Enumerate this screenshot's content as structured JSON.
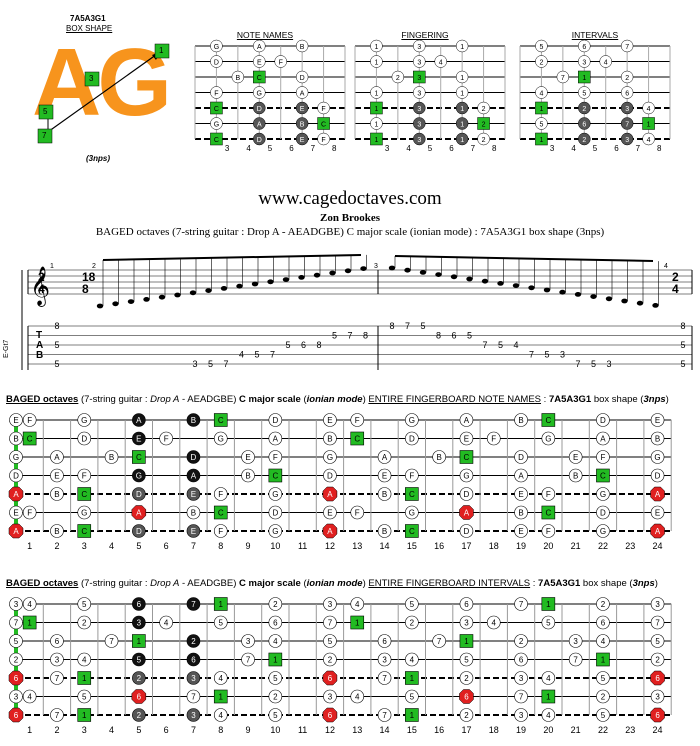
{
  "shape": {
    "name": "7A5A3G1",
    "subname": "BOX SHAPE",
    "big_letters": "AG",
    "nps": "(3nps)",
    "badges": [
      "1",
      "3",
      "5",
      "7"
    ]
  },
  "mini_titles": [
    "NOTE NAMES",
    "FINGERING",
    "INTERVALS"
  ],
  "mini_fret_numbers": [
    "3",
    "4",
    "5",
    "6",
    "7",
    "8"
  ],
  "site": "www.cagedoctaves.com",
  "author": "Zon Brookes",
  "subtitle": "BAGED octaves (7-string guitar : Drop A - AEADGBE) C major scale (ionian mode) : 7A5A3G1 box shape (3nps)",
  "staff": {
    "clef_label": "E-Gt7",
    "time1": [
      "2",
      "4"
    ],
    "time2": [
      "18",
      "8"
    ],
    "time3": [
      "2",
      "4"
    ],
    "measure_numbers": [
      "1",
      "2",
      "3",
      "4"
    ],
    "tab_letters": [
      "T",
      "A",
      "B"
    ],
    "tab_chord_start": [
      "8",
      "5",
      "5",
      "3",
      "3"
    ],
    "tab_chord_end": [
      "8",
      "5",
      "5",
      "3",
      "3"
    ],
    "tab_run1": [
      [
        "3",
        "5",
        "7"
      ],
      [
        "3",
        "5",
        "7"
      ],
      [
        "3",
        "5",
        "7"
      ],
      [
        "4",
        "5",
        "7"
      ],
      [
        "5",
        "6",
        "8"
      ],
      [
        "5",
        "7",
        "8"
      ]
    ],
    "tab_run2": [
      [
        "8",
        "7",
        "5"
      ],
      [
        "8",
        "6",
        "5"
      ],
      [
        "7",
        "5",
        "4"
      ],
      [
        "7",
        "5",
        "3"
      ],
      [
        "7",
        "5",
        "3"
      ],
      [
        "7",
        "5",
        "3"
      ]
    ]
  },
  "fb1": {
    "title_bold": "BAGED octaves",
    "title_rest": " (7-string guitar : ",
    "title_italic": "Drop A",
    "title_rest2": " - AEADGBE) ",
    "title_b2": "C major scale",
    "title_p": " (",
    "title_i2": "ionian mode",
    "title_p2": ") ",
    "title_u": "ENTIRE FINGERBOARD NOTE NAMES",
    "title_p3": " : ",
    "title_b3": "7A5A3G1",
    "title_p4": " box shape (",
    "title_b4": "3nps",
    "title_p5": ")"
  },
  "fb2": {
    "title_bold": "BAGED octaves",
    "title_rest": " (7-string guitar : ",
    "title_italic": "Drop A",
    "title_rest2": " - AEADGBE) ",
    "title_b2": "C major scale",
    "title_p": " (",
    "title_i2": "ionian mode",
    "title_p2": ") ",
    "title_u": "ENTIRE FINGERBOARD INTERVALS",
    "title_p3": " : ",
    "title_b3": "7A5A3G1",
    "title_p4": " box shape (",
    "title_b4": "3nps",
    "title_p5": ")"
  },
  "fret_numbers": [
    "1",
    "2",
    "3",
    "4",
    "5",
    "6",
    "7",
    "8",
    "9",
    "10",
    "11",
    "12",
    "13",
    "14",
    "15",
    "16",
    "17",
    "18",
    "19",
    "20",
    "21",
    "22",
    "23",
    "24"
  ],
  "open_notes": [
    "E",
    "B",
    "G",
    "D",
    "A",
    "E",
    "A"
  ],
  "open_intervals": [
    "3",
    "7",
    "5",
    "2",
    "6",
    "3",
    "6"
  ],
  "colors": {
    "accent_green": "#22bb22",
    "orange": "#e8801a",
    "red": "#e02020",
    "black": "#111111",
    "gray": "#555555"
  }
}
